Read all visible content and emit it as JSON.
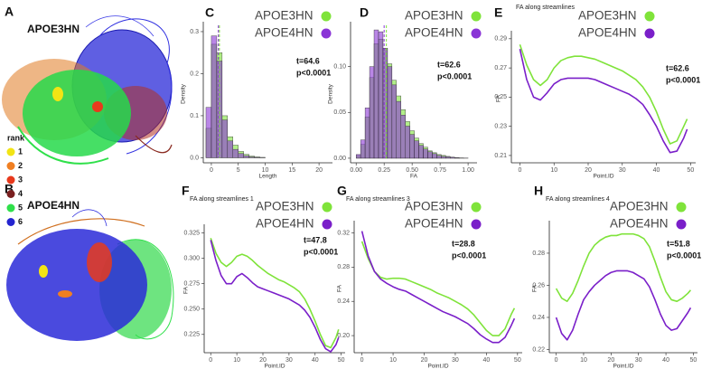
{
  "figure": {
    "panel_a": {
      "label": "A",
      "title": "APOE3HN"
    },
    "panel_b": {
      "label": "B",
      "title": "APOE4HN"
    },
    "rank_legend": {
      "title": "rank",
      "items": [
        {
          "label": "1",
          "color": "#f2e414"
        },
        {
          "label": "2",
          "color": "#f07f22"
        },
        {
          "label": "3",
          "color": "#e8391c"
        },
        {
          "label": "4",
          "color": "#7a2020"
        },
        {
          "label": "5",
          "color": "#2fe04a"
        },
        {
          "label": "6",
          "color": "#2424d0"
        }
      ]
    }
  },
  "chart_data": [
    {
      "type": "histogram",
      "panel_label": "C",
      "x_label": "Length",
      "y_label": "Density",
      "bins": [
        -1,
        0,
        1,
        2,
        3,
        4,
        5,
        6,
        7,
        8,
        9,
        10
      ],
      "series": [
        {
          "name": "APOE3HN",
          "color": "#7fe33a",
          "values": [
            0.07,
            0.27,
            0.25,
            0.1,
            0.05,
            0.03,
            0.015,
            0.008,
            0.004,
            0.002,
            0.001
          ],
          "mean": 1.5
        },
        {
          "name": "APOE4HN",
          "color": "#8a35d6",
          "values": [
            0.12,
            0.29,
            0.23,
            0.09,
            0.04,
            0.02,
            0.01,
            0.005,
            0.002,
            0.001,
            0.0005
          ],
          "mean": 1.3
        }
      ],
      "xlim": [
        -1.5,
        22.5
      ],
      "xticks": [
        0,
        5,
        10,
        15,
        20
      ],
      "ylim": [
        -0.012,
        0.315
      ],
      "yticks": [
        {
          "value": 0,
          "label": "0.0"
        },
        0.1,
        0.2,
        0.3
      ],
      "annotation": [
        "t=64.6",
        "p<0.0001"
      ]
    },
    {
      "type": "histogram",
      "panel_label": "D",
      "x_label": "FA",
      "y_label": "Density",
      "bins": [
        0,
        0.04,
        0.08,
        0.12,
        0.16,
        0.2,
        0.24,
        0.28,
        0.32,
        0.36,
        0.4,
        0.44,
        0.48,
        0.52,
        0.56,
        0.6,
        0.64,
        0.68,
        0.72,
        0.76,
        0.8,
        0.84,
        0.88,
        0.92,
        0.96,
        1.0
      ],
      "series": [
        {
          "name": "APOE3HN",
          "color": "#7fe33a",
          "values": [
            0.003,
            0.015,
            0.045,
            0.088,
            0.125,
            0.13,
            0.12,
            0.103,
            0.085,
            0.068,
            0.053,
            0.04,
            0.03,
            0.022,
            0.016,
            0.012,
            0.008,
            0.006,
            0.004,
            0.003,
            0.002,
            0.0012,
            0.0006,
            0.0003,
            0.0001
          ],
          "mean": 0.27
        },
        {
          "name": "APOE4HN",
          "color": "#8a35d6",
          "values": [
            0.004,
            0.02,
            0.055,
            0.1,
            0.14,
            0.138,
            0.12,
            0.1,
            0.08,
            0.062,
            0.047,
            0.035,
            0.026,
            0.019,
            0.014,
            0.01,
            0.007,
            0.005,
            0.003,
            0.002,
            0.0015,
            0.001,
            0.0005,
            0.0003,
            0.0001
          ],
          "mean": 0.25
        }
      ],
      "xlim": [
        -0.05,
        1.08
      ],
      "xticks": [
        {
          "value": 0,
          "label": "0.00"
        },
        0.25,
        {
          "value": 0.5,
          "label": "0.50"
        },
        0.75,
        {
          "value": 1,
          "label": "1.00"
        }
      ],
      "ylim": [
        -0.005,
        0.145
      ],
      "yticks": [
        {
          "value": 0,
          "label": "0.00"
        },
        0.05,
        {
          "value": 0.1,
          "label": "0.10"
        }
      ],
      "annotation": [
        "t=62.6",
        "p<0.0001"
      ]
    },
    {
      "type": "line",
      "panel_label": "E",
      "title": "FA along streamlines",
      "x_label": "Point.ID",
      "y_label": "FA",
      "x": [
        0,
        2,
        4,
        6,
        8,
        10,
        12,
        14,
        16,
        18,
        20,
        22,
        24,
        26,
        28,
        30,
        32,
        34,
        36,
        38,
        40,
        42,
        44,
        46,
        48,
        49
      ],
      "series": [
        {
          "name": "APOE3HN",
          "color": "#7fe33a",
          "values": [
            0.286,
            0.272,
            0.262,
            0.258,
            0.262,
            0.27,
            0.275,
            0.277,
            0.278,
            0.278,
            0.277,
            0.276,
            0.274,
            0.272,
            0.27,
            0.268,
            0.265,
            0.262,
            0.257,
            0.25,
            0.24,
            0.228,
            0.218,
            0.22,
            0.23,
            0.235
          ]
        },
        {
          "name": "APOE4HN",
          "color": "#7a1fc9",
          "values": [
            0.283,
            0.262,
            0.25,
            0.248,
            0.253,
            0.259,
            0.262,
            0.263,
            0.263,
            0.263,
            0.263,
            0.262,
            0.26,
            0.258,
            0.256,
            0.254,
            0.252,
            0.249,
            0.245,
            0.238,
            0.23,
            0.22,
            0.212,
            0.213,
            0.222,
            0.228
          ]
        }
      ],
      "xlim": [
        -2.5,
        51.5
      ],
      "xticks": [
        0,
        10,
        20,
        30,
        40,
        50
      ],
      "ylim": [
        0.205,
        0.293
      ],
      "yticks": [
        0.21,
        0.23,
        0.25,
        0.27,
        0.29
      ],
      "annotation": [
        "t=62.6",
        "p<0.0001"
      ]
    },
    {
      "type": "line",
      "panel_label": "F",
      "title": "FA along streamlines 1",
      "x_label": "Point.ID",
      "y_label": "FA",
      "x": [
        0,
        2,
        4,
        6,
        8,
        10,
        12,
        14,
        16,
        18,
        20,
        22,
        24,
        26,
        28,
        30,
        32,
        34,
        36,
        38,
        40,
        42,
        44,
        46,
        48,
        49
      ],
      "series": [
        {
          "name": "APOE3HN",
          "color": "#7fe33a",
          "values": [
            0.32,
            0.305,
            0.296,
            0.292,
            0.296,
            0.302,
            0.304,
            0.302,
            0.298,
            0.293,
            0.289,
            0.285,
            0.282,
            0.279,
            0.277,
            0.274,
            0.271,
            0.267,
            0.26,
            0.25,
            0.238,
            0.225,
            0.214,
            0.212,
            0.222,
            0.23
          ]
        },
        {
          "name": "APOE4HN",
          "color": "#7a1fc9",
          "values": [
            0.318,
            0.298,
            0.283,
            0.275,
            0.275,
            0.282,
            0.285,
            0.281,
            0.276,
            0.272,
            0.27,
            0.268,
            0.266,
            0.264,
            0.262,
            0.26,
            0.257,
            0.254,
            0.249,
            0.242,
            0.232,
            0.22,
            0.211,
            0.208,
            0.215,
            0.222
          ]
        }
      ],
      "xlim": [
        -2.5,
        51.5
      ],
      "xticks": [
        0,
        10,
        20,
        30,
        40,
        50
      ],
      "ylim": [
        0.207,
        0.33
      ],
      "yticks": [
        0.225,
        {
          "value": 0.25,
          "label": "0.250"
        },
        0.275,
        {
          "value": 0.3,
          "label": "0.300"
        },
        0.325
      ],
      "annotation": [
        "t=47.8",
        "p<0.0001"
      ]
    },
    {
      "type": "line",
      "panel_label": "G",
      "title": "FA along streamlines 3",
      "x_label": "Point.ID",
      "y_label": "FA",
      "x": [
        0,
        2,
        4,
        6,
        8,
        10,
        12,
        14,
        16,
        18,
        20,
        22,
        24,
        26,
        28,
        30,
        32,
        34,
        36,
        38,
        40,
        42,
        44,
        46,
        48,
        49
      ],
      "series": [
        {
          "name": "APOE3HN",
          "color": "#7fe33a",
          "values": [
            0.31,
            0.29,
            0.275,
            0.268,
            0.266,
            0.267,
            0.267,
            0.266,
            0.263,
            0.26,
            0.257,
            0.254,
            0.25,
            0.247,
            0.244,
            0.24,
            0.236,
            0.231,
            0.224,
            0.215,
            0.206,
            0.2,
            0.2,
            0.208,
            0.225,
            0.232
          ]
        },
        {
          "name": "APOE4HN",
          "color": "#7a1fc9",
          "values": [
            0.322,
            0.293,
            0.275,
            0.266,
            0.261,
            0.257,
            0.254,
            0.252,
            0.248,
            0.244,
            0.24,
            0.236,
            0.232,
            0.228,
            0.225,
            0.222,
            0.218,
            0.214,
            0.208,
            0.201,
            0.196,
            0.192,
            0.192,
            0.198,
            0.212,
            0.22
          ]
        }
      ],
      "xlim": [
        -2.5,
        51.5
      ],
      "xticks": [
        0,
        10,
        20,
        30,
        40,
        50
      ],
      "ylim": [
        0.18,
        0.33
      ],
      "yticks": [
        {
          "value": 0.2,
          "label": "0.20"
        },
        0.24,
        0.28,
        0.32
      ],
      "annotation": [
        "t=28.8",
        "p<0.0001"
      ]
    },
    {
      "type": "line",
      "panel_label": "H",
      "title": "FA along streamlines 4",
      "x_label": "Point.ID",
      "y_label": "FA",
      "x": [
        0,
        2,
        4,
        6,
        8,
        10,
        12,
        14,
        16,
        18,
        20,
        22,
        24,
        26,
        28,
        30,
        32,
        34,
        36,
        38,
        40,
        42,
        44,
        46,
        48,
        49
      ],
      "series": [
        {
          "name": "APOE3HN",
          "color": "#7fe33a",
          "values": [
            0.258,
            0.252,
            0.25,
            0.255,
            0.263,
            0.272,
            0.28,
            0.285,
            0.288,
            0.29,
            0.291,
            0.291,
            0.292,
            0.292,
            0.292,
            0.291,
            0.289,
            0.284,
            0.275,
            0.265,
            0.256,
            0.251,
            0.25,
            0.252,
            0.255,
            0.257
          ]
        },
        {
          "name": "APOE4HN",
          "color": "#7a1fc9",
          "values": [
            0.24,
            0.23,
            0.226,
            0.232,
            0.242,
            0.251,
            0.256,
            0.26,
            0.263,
            0.266,
            0.268,
            0.269,
            0.269,
            0.269,
            0.268,
            0.266,
            0.264,
            0.259,
            0.251,
            0.242,
            0.235,
            0.232,
            0.233,
            0.238,
            0.243,
            0.246
          ]
        }
      ],
      "xlim": [
        -2.5,
        51.5
      ],
      "xticks": [
        0,
        10,
        20,
        30,
        40,
        50
      ],
      "ylim": [
        0.218,
        0.298
      ],
      "yticks": [
        0.22,
        0.24,
        0.26,
        0.28
      ],
      "annotation": [
        "t=51.8",
        "p<0.0001"
      ]
    }
  ]
}
